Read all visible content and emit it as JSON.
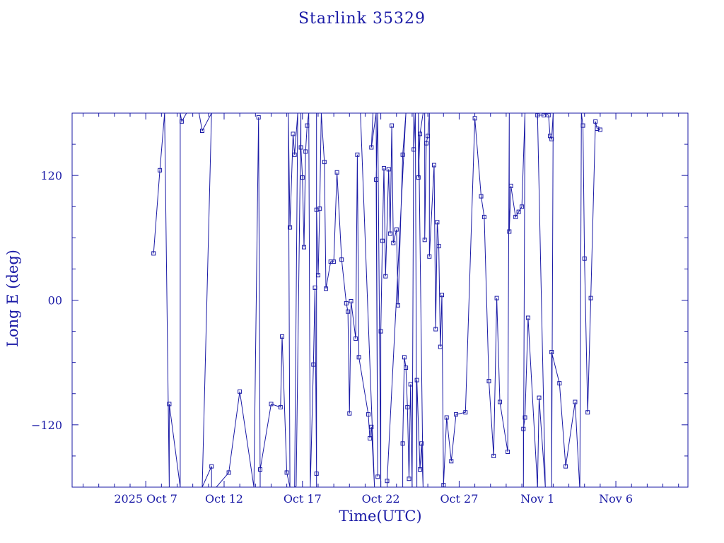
{
  "chart_data": {
    "type": "line",
    "title": "Starlink 35329",
    "xlabel": "Time(UTC)",
    "ylabel": "Long E (deg)",
    "x_unit": "day of 2025 (Oct 1 = 1)",
    "xlim": [
      2.3,
      41.6
    ],
    "ylim": [
      -180,
      180
    ],
    "x_ticks": [
      {
        "value": 7,
        "label": "2025 Oct  7"
      },
      {
        "value": 12,
        "label": "Oct 12"
      },
      {
        "value": 17,
        "label": "Oct 17"
      },
      {
        "value": 22,
        "label": "Oct 22"
      },
      {
        "value": 27,
        "label": "Oct 27"
      },
      {
        "value": 32,
        "label": "Nov  1"
      },
      {
        "value": 37,
        "label": "Nov  6"
      }
    ],
    "y_ticks": [
      {
        "value": 120,
        "label": "120"
      },
      {
        "value": 0,
        "label": "00"
      },
      {
        "value": -120,
        "label": "−120"
      }
    ],
    "grid": false,
    "line_color": "#1a1aa6",
    "series": [
      {
        "values": [
          [
            7.5,
            45
          ],
          [
            7.9,
            125
          ],
          [
            8.2,
            180
          ],
          [
            8.5,
            -180
          ],
          [
            8.5,
            -100
          ],
          [
            9.2,
            -180
          ],
          [
            9.2,
            180
          ],
          [
            9.3,
            172
          ],
          [
            9.6,
            180
          ],
          [
            10.4,
            180
          ],
          [
            10.6,
            163
          ],
          [
            11.2,
            180
          ],
          [
            10.6,
            -180
          ],
          [
            11.2,
            -160
          ],
          [
            11.2,
            -180
          ],
          [
            11.5,
            -180
          ],
          [
            12.3,
            -166
          ],
          [
            13.0,
            -88
          ],
          [
            13.9,
            -180
          ],
          [
            14.2,
            176
          ],
          [
            14.3,
            -180
          ],
          [
            14.3,
            -163
          ],
          [
            15.0,
            -100
          ],
          [
            15.6,
            -103
          ],
          [
            15.7,
            -35
          ],
          [
            16.0,
            -166
          ],
          [
            16.2,
            -180
          ],
          [
            16.1,
            180
          ],
          [
            16.2,
            70
          ],
          [
            16.4,
            160
          ],
          [
            16.5,
            140
          ],
          [
            16.7,
            180
          ],
          [
            16.5,
            -180
          ],
          [
            16.6,
            -179
          ],
          [
            16.9,
            180
          ],
          [
            16.9,
            147
          ],
          [
            17.0,
            118
          ],
          [
            17.1,
            51
          ],
          [
            17.2,
            143
          ],
          [
            17.3,
            168
          ],
          [
            17.4,
            180
          ],
          [
            17.5,
            -180
          ],
          [
            17.7,
            -62
          ],
          [
            17.8,
            12
          ],
          [
            17.9,
            -167
          ],
          [
            17.9,
            -180
          ],
          [
            17.9,
            180
          ],
          [
            17.9,
            87
          ],
          [
            18.0,
            24
          ],
          [
            18.1,
            88
          ],
          [
            18.2,
            180
          ],
          [
            18.4,
            133
          ],
          [
            18.5,
            11
          ],
          [
            18.8,
            37
          ],
          [
            19.0,
            37
          ],
          [
            19.2,
            123
          ],
          [
            19.5,
            39
          ],
          [
            19.8,
            -3
          ],
          [
            19.9,
            -11
          ],
          [
            20.0,
            -109
          ],
          [
            20.1,
            -1
          ],
          [
            20.4,
            -37
          ],
          [
            20.5,
            140
          ],
          [
            20.6,
            -55
          ],
          [
            21.2,
            -110
          ],
          [
            21.3,
            -133
          ],
          [
            21.4,
            -122
          ],
          [
            21.6,
            -180
          ],
          [
            20.7,
            180
          ],
          [
            21.5,
            180
          ],
          [
            21.4,
            147
          ],
          [
            21.7,
            180
          ],
          [
            21.8,
            -170
          ],
          [
            21.7,
            116
          ],
          [
            21.8,
            180
          ],
          [
            22.0,
            -180
          ],
          [
            22.0,
            -30
          ],
          [
            22.1,
            57
          ],
          [
            22.2,
            127
          ],
          [
            22.3,
            23
          ],
          [
            22.5,
            126
          ],
          [
            22.6,
            64
          ],
          [
            22.7,
            168
          ],
          [
            22.8,
            55
          ],
          [
            23.0,
            68
          ],
          [
            23.1,
            -5
          ],
          [
            23.4,
            140
          ],
          [
            23.6,
            180
          ],
          [
            22.4,
            -174
          ],
          [
            22.4,
            -180
          ],
          [
            23.4,
            -183
          ],
          [
            23.4,
            -138
          ],
          [
            23.5,
            -55
          ],
          [
            23.6,
            -65
          ],
          [
            23.7,
            -103
          ],
          [
            23.8,
            -172
          ],
          [
            23.9,
            -81
          ],
          [
            24.0,
            -180
          ],
          [
            24.1,
            180
          ],
          [
            24.1,
            145
          ],
          [
            24.2,
            180
          ],
          [
            24.3,
            -180
          ],
          [
            24.3,
            -77
          ],
          [
            24.5,
            -163
          ],
          [
            24.6,
            -138
          ],
          [
            24.7,
            -180
          ],
          [
            24.4,
            180
          ],
          [
            24.4,
            118
          ],
          [
            24.5,
            160
          ],
          [
            24.7,
            180
          ],
          [
            24.8,
            180
          ],
          [
            24.8,
            58
          ],
          [
            24.9,
            151
          ],
          [
            25.0,
            158
          ],
          [
            25.1,
            180
          ],
          [
            25.1,
            42
          ],
          [
            25.4,
            130
          ],
          [
            25.5,
            -28
          ],
          [
            25.6,
            75
          ],
          [
            25.7,
            52
          ],
          [
            25.8,
            -45
          ],
          [
            25.9,
            5
          ],
          [
            26.0,
            -178
          ],
          [
            26.2,
            -113
          ],
          [
            26.5,
            -155
          ],
          [
            26.8,
            -110
          ],
          [
            27.4,
            -108
          ],
          [
            28.0,
            175
          ],
          [
            28.4,
            100
          ],
          [
            28.6,
            80
          ],
          [
            28.9,
            -78
          ],
          [
            29.2,
            -150
          ],
          [
            29.4,
            2
          ],
          [
            29.6,
            -98
          ],
          [
            30.1,
            -146
          ],
          [
            30.2,
            180
          ],
          [
            30.2,
            66
          ],
          [
            30.3,
            110
          ],
          [
            30.6,
            80
          ],
          [
            30.8,
            85
          ],
          [
            31.0,
            90
          ],
          [
            31.2,
            180
          ],
          [
            31.1,
            -180
          ],
          [
            31.1,
            -124
          ],
          [
            31.2,
            -113
          ],
          [
            31.4,
            -17
          ],
          [
            32.0,
            -180
          ],
          [
            32.1,
            -94
          ],
          [
            32.5,
            -180
          ],
          [
            32.0,
            180
          ],
          [
            32.0,
            178
          ],
          [
            32.4,
            178
          ],
          [
            32.5,
            180
          ],
          [
            32.7,
            178
          ],
          [
            32.8,
            158
          ],
          [
            32.9,
            155
          ],
          [
            33.0,
            180
          ],
          [
            32.9,
            -180
          ],
          [
            32.9,
            -50
          ],
          [
            33.4,
            -80
          ],
          [
            33.8,
            -160
          ],
          [
            34.4,
            -98
          ],
          [
            34.7,
            -183
          ],
          [
            34.8,
            180
          ],
          [
            34.9,
            168
          ],
          [
            35.0,
            40
          ],
          [
            35.2,
            -108
          ],
          [
            35.4,
            2
          ],
          [
            35.7,
            172
          ],
          [
            35.8,
            165
          ],
          [
            36.0,
            164
          ]
        ]
      }
    ]
  }
}
